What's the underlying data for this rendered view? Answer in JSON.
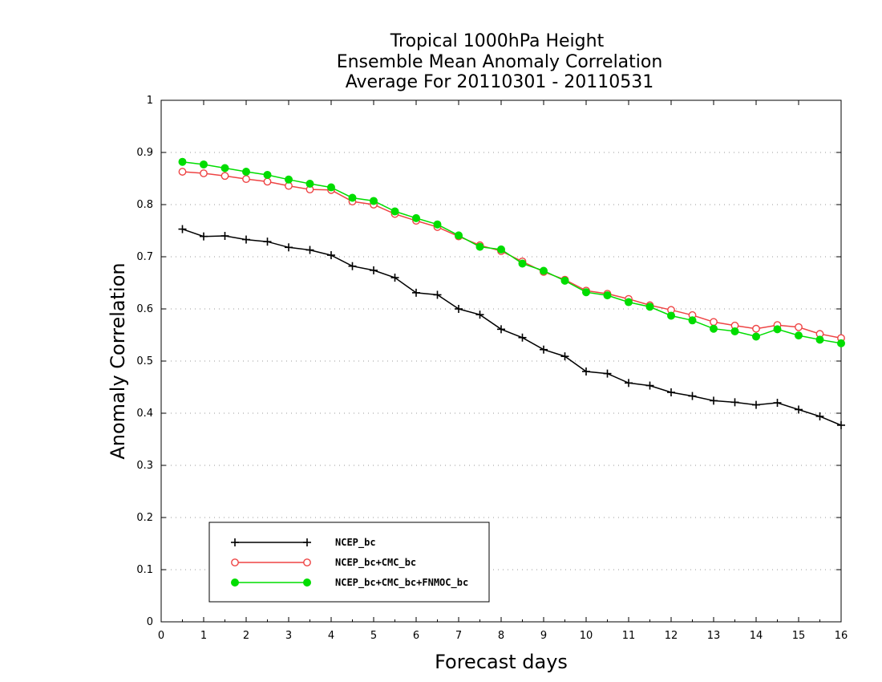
{
  "chart_data": {
    "type": "line",
    "title": [
      "Tropical 1000hPa Height",
      "Ensemble Mean Anomaly Correlation",
      "Average For 20110301 - 20110531"
    ],
    "xlabel": "Forecast days",
    "ylabel": "Anomaly Correlation",
    "xlim": [
      0,
      16
    ],
    "ylim": [
      0,
      1
    ],
    "xticks": [
      0,
      1,
      2,
      3,
      4,
      5,
      6,
      7,
      8,
      9,
      10,
      11,
      12,
      13,
      14,
      15,
      16
    ],
    "yticks": [
      0,
      0.1,
      0.2,
      0.3,
      0.4,
      0.5,
      0.6,
      0.7,
      0.8,
      0.9,
      1
    ],
    "ytick_labels": [
      "0",
      "0.1",
      "0.2",
      "0.3",
      "0.4",
      "0.5",
      "0.6",
      "0.7",
      "0.8",
      "0.9",
      "1"
    ],
    "grid": "horizontal-dotted",
    "legend_position": "bottom-left",
    "x": [
      0.5,
      1,
      1.5,
      2,
      2.5,
      3,
      3.5,
      4,
      4.5,
      5,
      5.5,
      6,
      6.5,
      7,
      7.5,
      8,
      8.5,
      9,
      9.5,
      10,
      10.5,
      11,
      11.5,
      12,
      12.5,
      13,
      13.5,
      14,
      14.5,
      15,
      15.5,
      16
    ],
    "series": [
      {
        "name": "NCEP_bc",
        "color": "#000000",
        "marker": "plus",
        "values": [
          0.753,
          0.739,
          0.74,
          0.733,
          0.729,
          0.718,
          0.713,
          0.703,
          0.682,
          0.674,
          0.66,
          0.631,
          0.627,
          0.6,
          0.589,
          0.561,
          0.545,
          0.522,
          0.509,
          0.48,
          0.476,
          0.458,
          0.453,
          0.44,
          0.433,
          0.424,
          0.421,
          0.416,
          0.42,
          0.407,
          0.394,
          0.377
        ]
      },
      {
        "name": "NCEP_bc+CMC_bc",
        "color": "#ee4444",
        "marker": "open-circle",
        "values": [
          0.863,
          0.86,
          0.855,
          0.849,
          0.844,
          0.836,
          0.829,
          0.828,
          0.806,
          0.8,
          0.782,
          0.769,
          0.757,
          0.739,
          0.722,
          0.711,
          0.691,
          0.671,
          0.656,
          0.635,
          0.629,
          0.619,
          0.607,
          0.598,
          0.588,
          0.575,
          0.568,
          0.562,
          0.569,
          0.565,
          0.552,
          0.544
        ]
      },
      {
        "name": "NCEP_bc+CMC_bc+FNMOC_bc",
        "color": "#00dd00",
        "marker": "filled-circle",
        "values": [
          0.882,
          0.877,
          0.87,
          0.863,
          0.857,
          0.848,
          0.84,
          0.833,
          0.813,
          0.807,
          0.787,
          0.774,
          0.762,
          0.741,
          0.719,
          0.714,
          0.687,
          0.673,
          0.654,
          0.632,
          0.626,
          0.613,
          0.604,
          0.587,
          0.578,
          0.562,
          0.557,
          0.547,
          0.561,
          0.549,
          0.541,
          0.534
        ]
      }
    ]
  }
}
